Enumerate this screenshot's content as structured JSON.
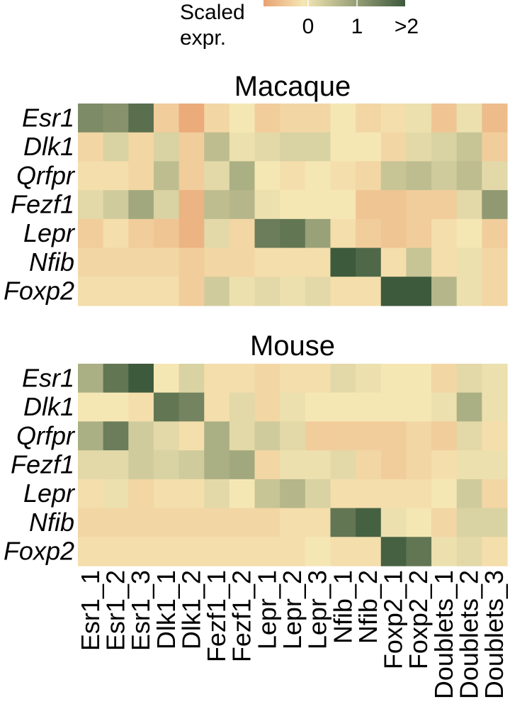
{
  "legend": {
    "title_line1": "Scaled",
    "title_line2": "expr.",
    "ticks": [
      "0",
      "1",
      ">2"
    ]
  },
  "chart_data": [
    {
      "type": "heatmap",
      "title": "Macaque",
      "rows": [
        "Esr1",
        "Dlk1",
        "Qrfpr",
        "Fezf1",
        "Lepr",
        "Nfib",
        "Foxp2"
      ],
      "columns": [
        "Esr1_1",
        "Esr1_2",
        "Esr1_3",
        "Dlk1_1",
        "Dlk1_2",
        "Fezf1_1",
        "Fezf1_2",
        "Lepr_1",
        "Lepr_2",
        "Lepr_3",
        "Nfib_1",
        "Nfib_2",
        "Foxp2_1",
        "Foxp2_2",
        "Doublets_1",
        "Doublets_2",
        "Doublets_3"
      ],
      "scale": {
        "min": -0.8,
        "max": 2,
        "colors": [
          "#e9a272",
          "#f5e7b4",
          "#3d5a3c"
        ]
      },
      "values": [
        [
          1.3,
          1.2,
          1.7,
          -0.3,
          -0.7,
          -0.2,
          0.0,
          -0.3,
          -0.2,
          -0.2,
          0.0,
          -0.2,
          -0.1,
          0.1,
          -0.4,
          0.1,
          -0.5
        ],
        [
          -0.2,
          0.3,
          -0.2,
          0.3,
          -0.3,
          0.6,
          0.1,
          0.2,
          0.3,
          0.3,
          0.0,
          0.0,
          -0.2,
          0.2,
          0.3,
          0.5,
          -0.3
        ],
        [
          -0.1,
          -0.1,
          -0.2,
          0.6,
          -0.3,
          0.2,
          0.8,
          0.0,
          -0.1,
          0.0,
          -0.1,
          -0.2,
          0.5,
          0.6,
          0.4,
          0.6,
          0.2
        ],
        [
          0.2,
          0.4,
          0.9,
          0.3,
          -0.6,
          0.6,
          0.7,
          0.1,
          0.0,
          0.0,
          0.0,
          -0.4,
          -0.4,
          -0.3,
          -0.3,
          0.2,
          1.1
        ],
        [
          -0.3,
          -0.1,
          -0.3,
          -0.4,
          -0.6,
          0.2,
          -0.2,
          1.5,
          1.6,
          1.0,
          -0.1,
          -0.3,
          -0.4,
          -0.3,
          -0.1,
          0.0,
          -0.3
        ],
        [
          -0.2,
          -0.2,
          -0.2,
          -0.2,
          -0.3,
          -0.2,
          -0.2,
          -0.1,
          -0.1,
          -0.1,
          2.0,
          1.8,
          -0.1,
          0.5,
          -0.1,
          0.1,
          -0.2
        ],
        [
          -0.1,
          -0.1,
          -0.1,
          -0.1,
          -0.3,
          0.4,
          0.1,
          0.2,
          0.1,
          0.2,
          -0.1,
          -0.1,
          2.0,
          2.0,
          0.7,
          0.1,
          -0.2
        ]
      ]
    },
    {
      "type": "heatmap",
      "title": "Mouse",
      "rows": [
        "Esr1",
        "Dlk1",
        "Qrfpr",
        "Fezf1",
        "Lepr",
        "Nfib",
        "Foxp2"
      ],
      "columns": [
        "Esr1_1",
        "Esr1_2",
        "Esr1_3",
        "Dlk1_1",
        "Dlk1_2",
        "Fezf1_1",
        "Fezf1_2",
        "Lepr_1",
        "Lepr_2",
        "Lepr_3",
        "Nfib_1",
        "Nfib_2",
        "Foxp2_1",
        "Foxp2_2",
        "Doublets_1",
        "Doublets_2",
        "Doublets_3"
      ],
      "scale": {
        "min": -0.8,
        "max": 2,
        "colors": [
          "#e9a272",
          "#f5e7b4",
          "#3d5a3c"
        ]
      },
      "values": [
        [
          0.8,
          1.6,
          2.0,
          0.0,
          0.3,
          -0.1,
          -0.1,
          -0.2,
          -0.1,
          -0.1,
          0.2,
          0.1,
          0.0,
          0.0,
          -0.2,
          0.2,
          0.1
        ],
        [
          0.0,
          0.0,
          -0.1,
          1.6,
          1.4,
          -0.1,
          0.2,
          -0.2,
          0.1,
          0.0,
          0.0,
          0.0,
          0.0,
          0.0,
          0.1,
          0.8,
          0.1
        ],
        [
          0.8,
          1.5,
          0.4,
          0.2,
          -0.1,
          0.8,
          0.2,
          0.4,
          0.2,
          -0.3,
          -0.3,
          -0.3,
          -0.3,
          -0.2,
          -0.3,
          0.2,
          -0.1
        ],
        [
          0.2,
          0.2,
          0.4,
          0.3,
          0.4,
          0.8,
          0.9,
          -0.2,
          0.1,
          0.1,
          0.2,
          -0.2,
          -0.3,
          -0.2,
          -0.1,
          0.1,
          0.1
        ],
        [
          -0.1,
          0.1,
          -0.2,
          -0.1,
          -0.1,
          0.2,
          0.0,
          0.5,
          0.7,
          0.3,
          -0.1,
          -0.1,
          -0.1,
          -0.1,
          0.0,
          0.4,
          -0.2
        ],
        [
          -0.2,
          -0.2,
          -0.2,
          -0.2,
          -0.2,
          -0.2,
          -0.2,
          -0.2,
          -0.1,
          -0.1,
          1.6,
          1.9,
          0.1,
          0.0,
          -0.2,
          0.3,
          0.3
        ],
        [
          -0.1,
          -0.1,
          -0.1,
          -0.1,
          -0.1,
          -0.1,
          -0.1,
          -0.1,
          -0.1,
          0.0,
          -0.1,
          -0.1,
          1.9,
          1.6,
          0.1,
          0.2,
          -0.1
        ]
      ]
    }
  ]
}
